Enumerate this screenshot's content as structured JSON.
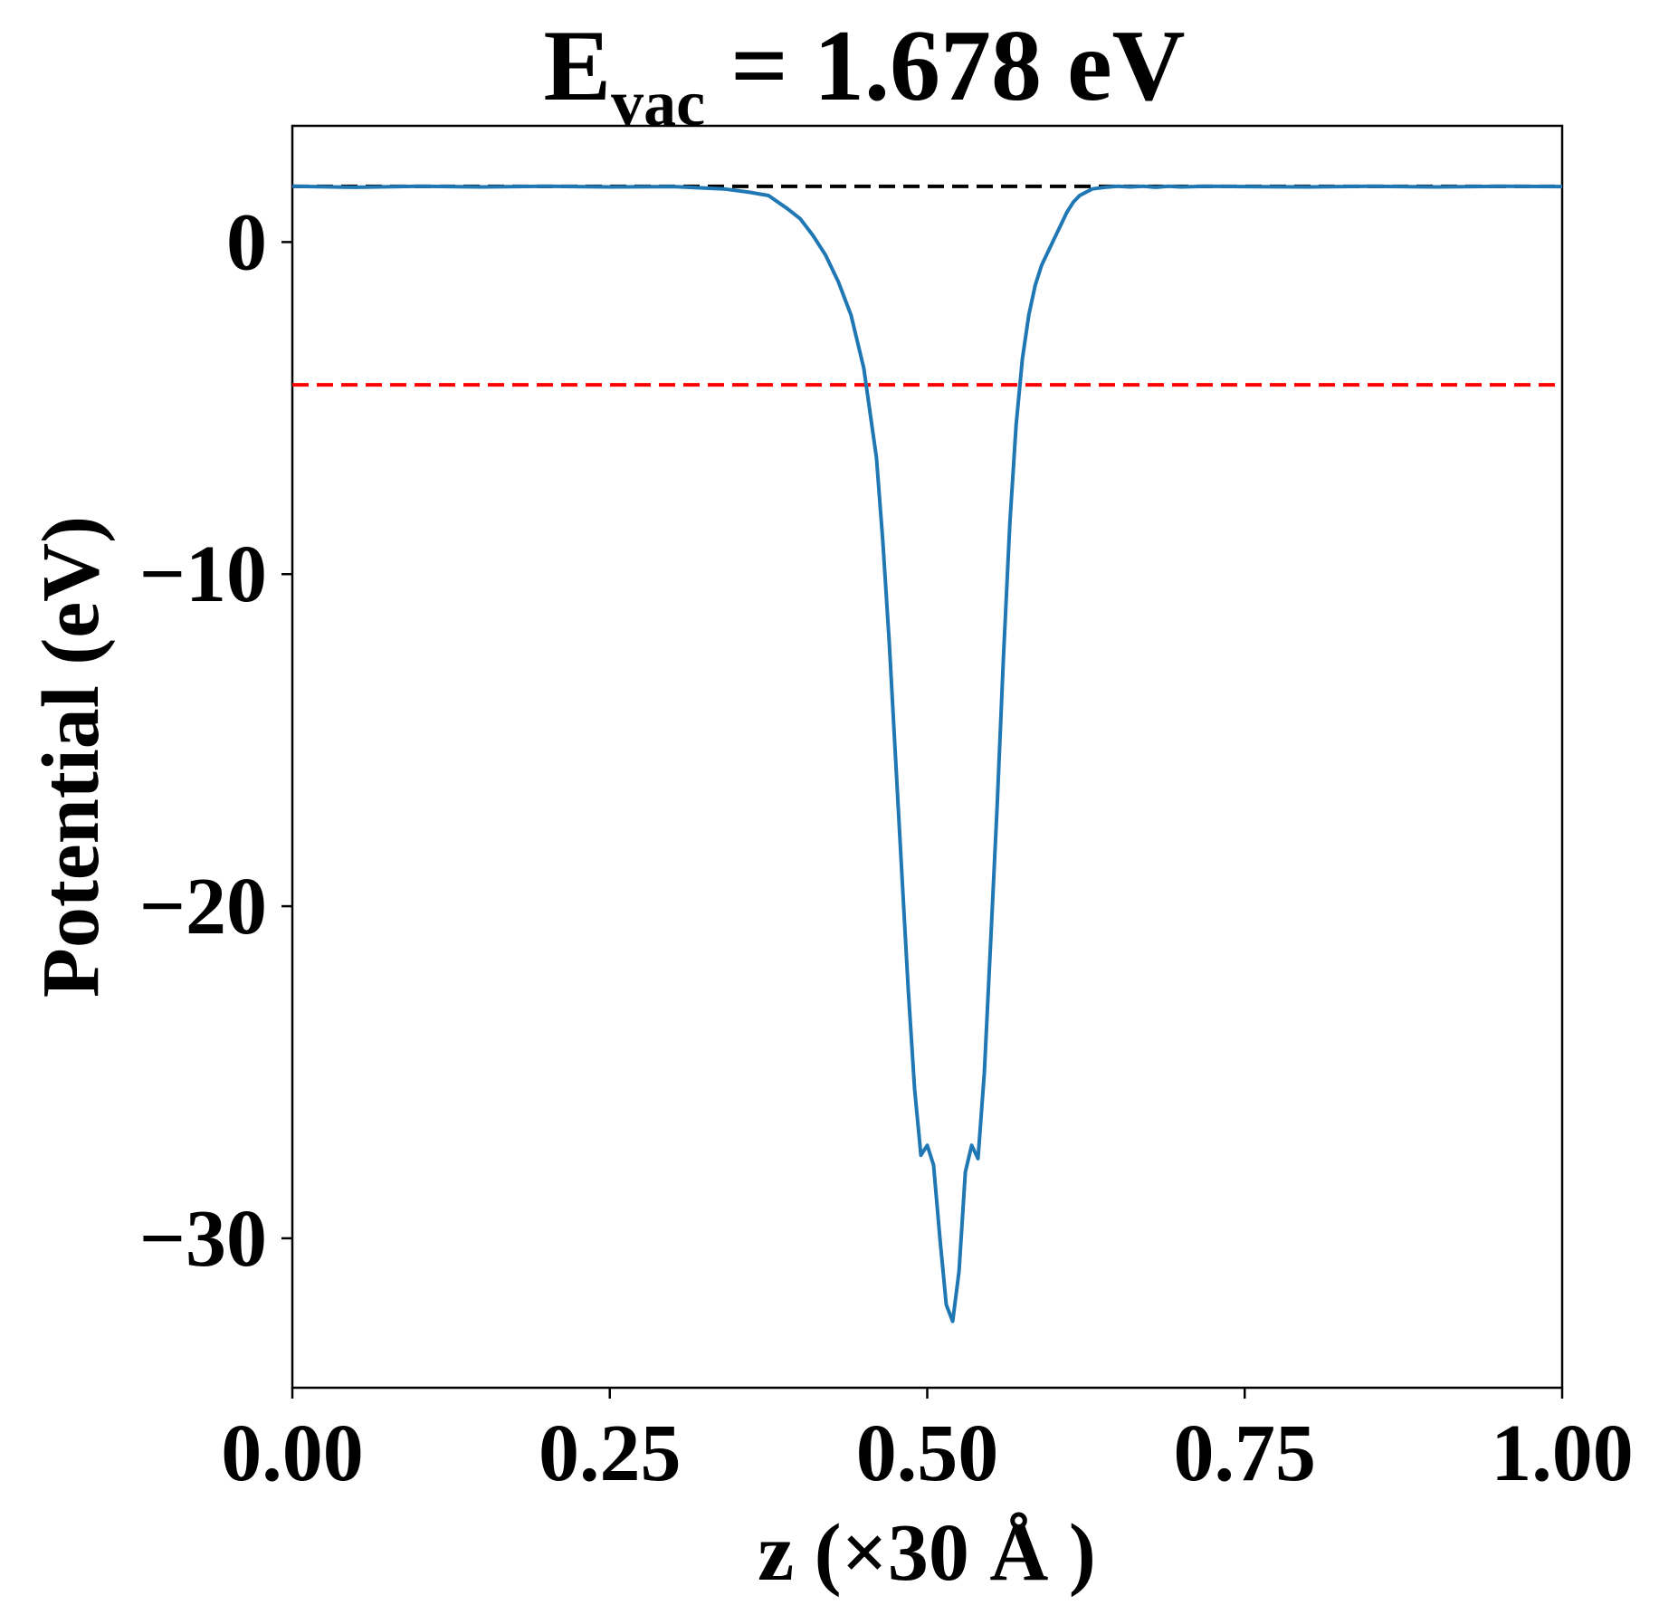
{
  "chart_data": {
    "type": "line",
    "title": {
      "main": "E",
      "subscript": "vac",
      "rest": " = 1.678 eV"
    },
    "xlabel": "z (×30 Å )",
    "ylabel": "Potential (eV)",
    "xlim": [
      0,
      1
    ],
    "ylim": [
      -34.5,
      3.5
    ],
    "xticks": [
      0.0,
      0.25,
      0.5,
      0.75,
      1.0
    ],
    "xtick_labels": [
      "0.00",
      "0.25",
      "0.50",
      "0.75",
      "1.00"
    ],
    "yticks": [
      0,
      -10,
      -20,
      -30
    ],
    "ytick_labels": [
      "0",
      "−10",
      "−20",
      "−30"
    ],
    "grid": false,
    "series": [
      {
        "color": "#1f77b4",
        "x": [
          0.0,
          0.05,
          0.1,
          0.15,
          0.2,
          0.25,
          0.3,
          0.34,
          0.36,
          0.375,
          0.39,
          0.4,
          0.41,
          0.42,
          0.43,
          0.44,
          0.45,
          0.46,
          0.465,
          0.47,
          0.475,
          0.48,
          0.485,
          0.49,
          0.495,
          0.5,
          0.505,
          0.51,
          0.515,
          0.52,
          0.525,
          0.53,
          0.535,
          0.54,
          0.545,
          0.55,
          0.555,
          0.56,
          0.565,
          0.57,
          0.575,
          0.58,
          0.585,
          0.59,
          0.595,
          0.6,
          0.605,
          0.61,
          0.615,
          0.62,
          0.63,
          0.64,
          0.65,
          0.66,
          0.67,
          0.68,
          0.69,
          0.7,
          0.72,
          0.75,
          0.8,
          0.85,
          0.9,
          0.95,
          1.0
        ],
        "y": [
          1.68,
          1.65,
          1.68,
          1.66,
          1.68,
          1.66,
          1.67,
          1.6,
          1.5,
          1.4,
          1.0,
          0.7,
          0.2,
          -0.4,
          -1.2,
          -2.2,
          -3.8,
          -6.5,
          -9.0,
          -12.0,
          -15.5,
          -19.0,
          -22.5,
          -25.5,
          -27.5,
          -27.2,
          -27.8,
          -30.0,
          -32.0,
          -32.5,
          -31.0,
          -28.0,
          -27.2,
          -27.6,
          -25.0,
          -21.0,
          -17.0,
          -12.5,
          -8.5,
          -5.5,
          -3.5,
          -2.2,
          -1.3,
          -0.7,
          -0.3,
          0.1,
          0.5,
          0.9,
          1.2,
          1.4,
          1.6,
          1.65,
          1.68,
          1.66,
          1.68,
          1.65,
          1.68,
          1.66,
          1.68,
          1.67,
          1.66,
          1.68,
          1.66,
          1.68,
          1.67
        ]
      }
    ],
    "reference_lines": [
      {
        "y": 1.678,
        "color": "#000000",
        "style": "dashed"
      },
      {
        "y": -4.3,
        "color": "#ff0000",
        "style": "dashed"
      }
    ]
  }
}
